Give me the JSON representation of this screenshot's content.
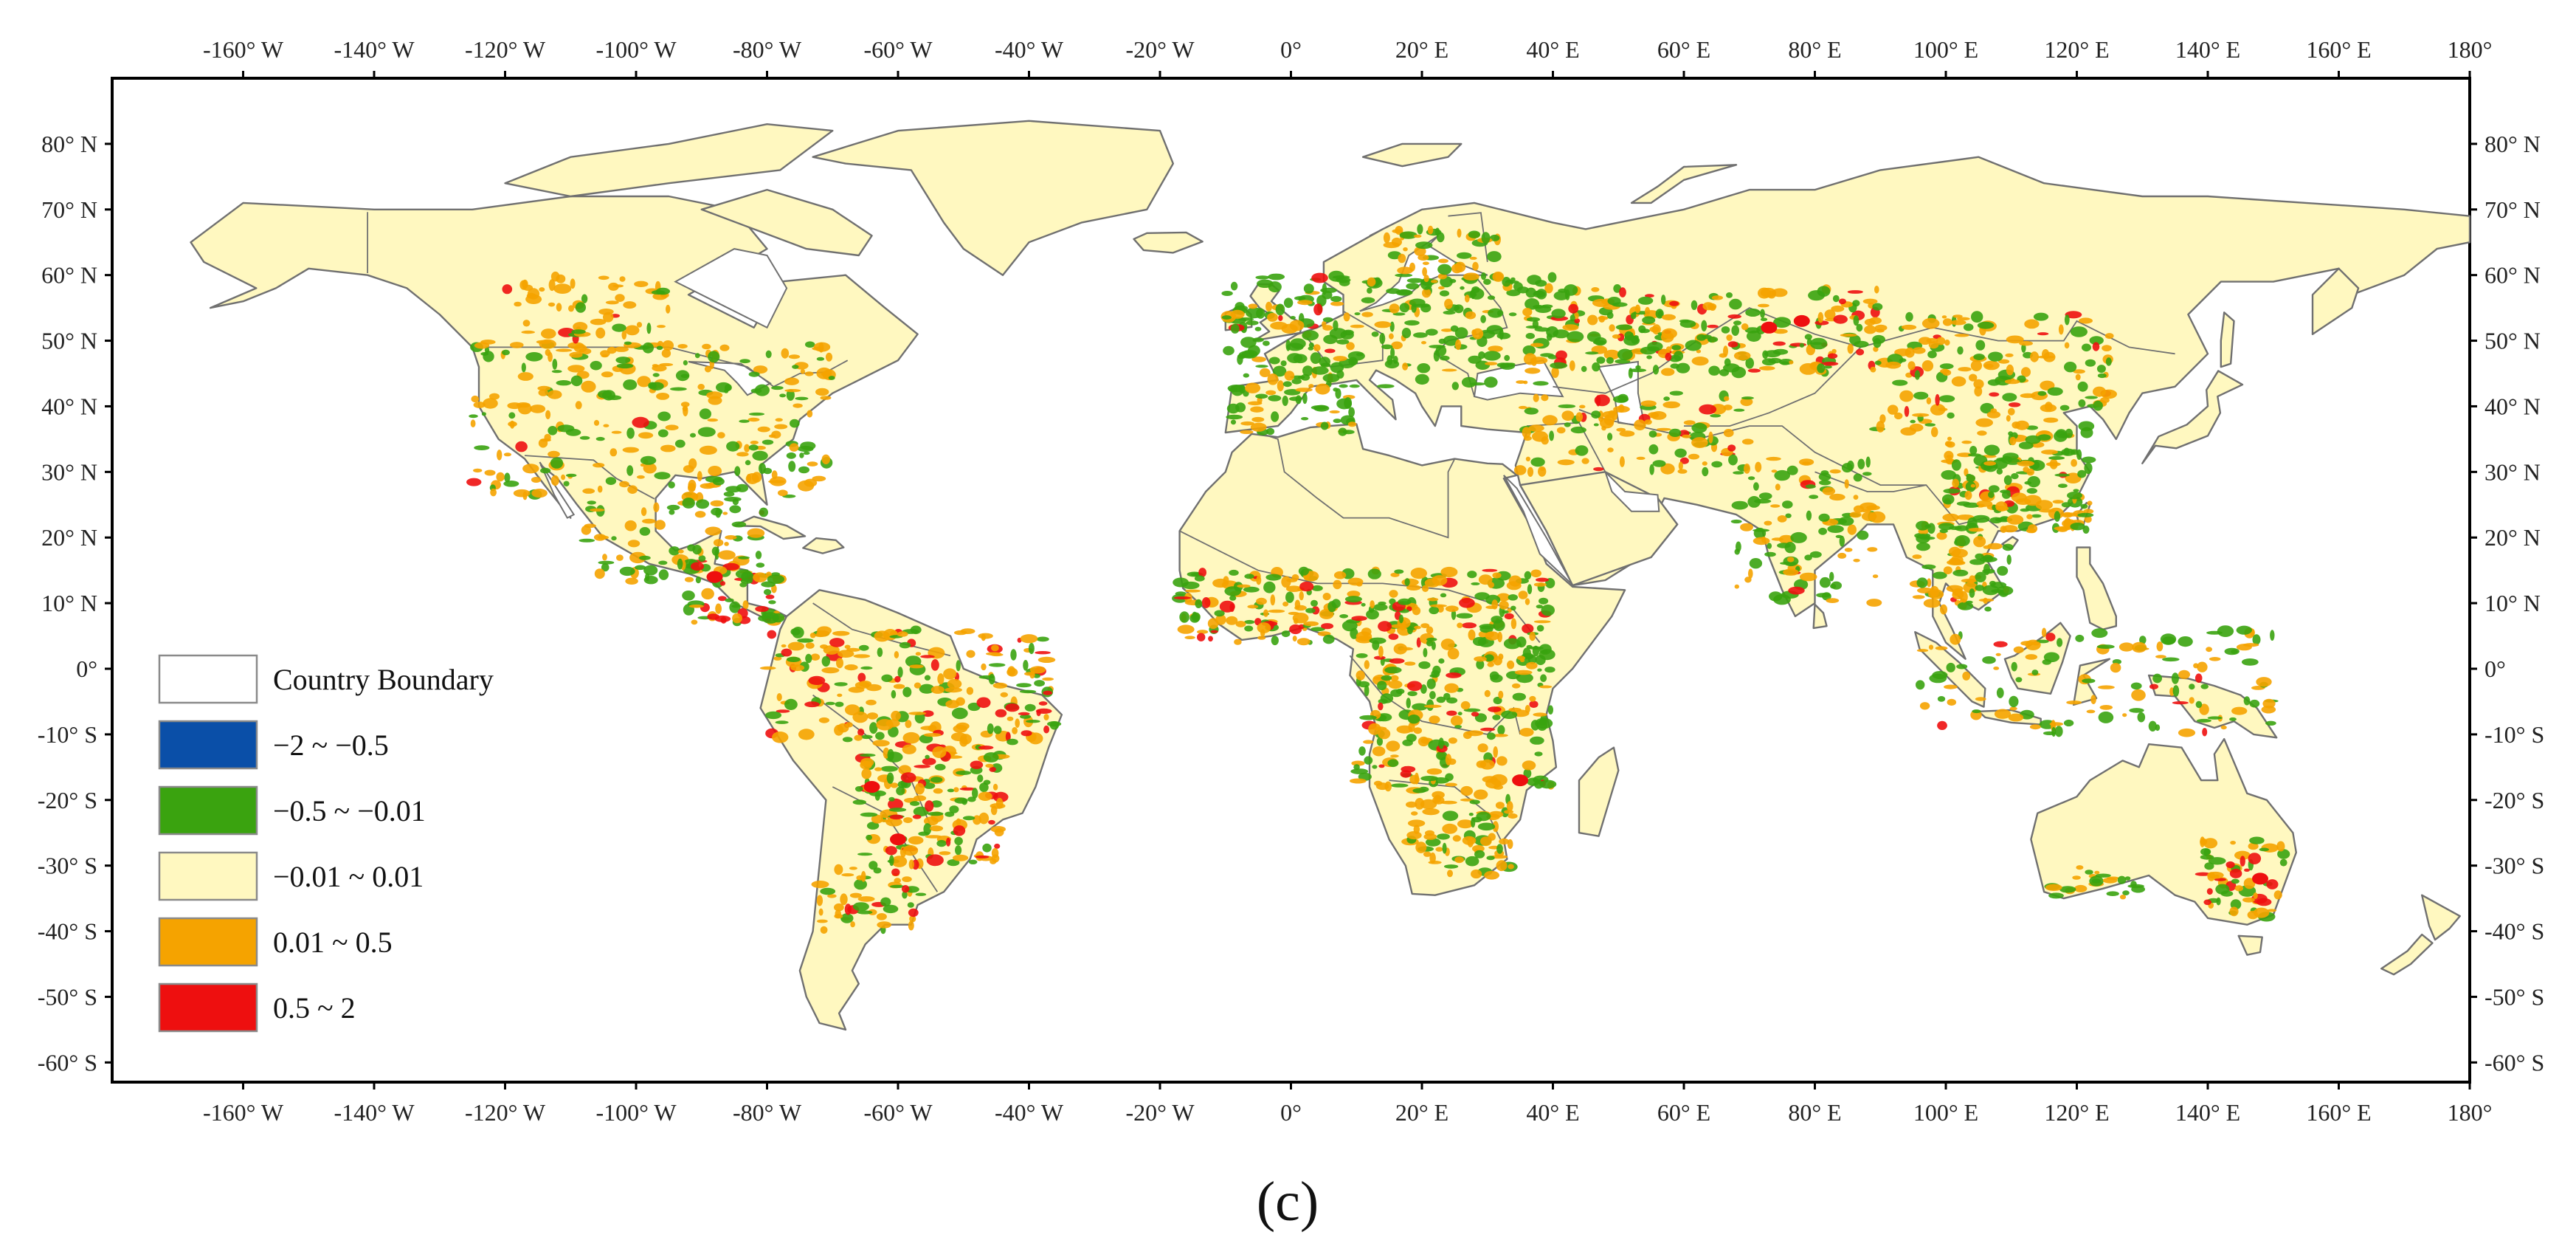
{
  "map": {
    "panel_label": "(c)",
    "extent": {
      "lon": [
        -180,
        180
      ],
      "lat": [
        -63,
        90
      ]
    },
    "background_color": "#ffffff",
    "land_color": "#fff8c0",
    "boundary_color": "#707070",
    "x_ticks": [
      {
        "lon": -160,
        "label": "-160° W"
      },
      {
        "lon": -140,
        "label": "-140° W"
      },
      {
        "lon": -120,
        "label": "-120° W"
      },
      {
        "lon": -100,
        "label": "-100° W"
      },
      {
        "lon": -80,
        "label": "-80° W"
      },
      {
        "lon": -60,
        "label": "-60° W"
      },
      {
        "lon": -40,
        "label": "-40° W"
      },
      {
        "lon": -20,
        "label": "-20° W"
      },
      {
        "lon": 0,
        "label": "0°"
      },
      {
        "lon": 20,
        "label": "20° E"
      },
      {
        "lon": 40,
        "label": "40° E"
      },
      {
        "lon": 60,
        "label": "60° E"
      },
      {
        "lon": 80,
        "label": "80° E"
      },
      {
        "lon": 100,
        "label": "100° E"
      },
      {
        "lon": 120,
        "label": "120° E"
      },
      {
        "lon": 140,
        "label": "140° E"
      },
      {
        "lon": 160,
        "label": "160° E"
      },
      {
        "lon": 180,
        "label": "180°"
      }
    ],
    "y_ticks": [
      {
        "lat": 80,
        "label": "80° N"
      },
      {
        "lat": 70,
        "label": "70° N"
      },
      {
        "lat": 60,
        "label": "60° N"
      },
      {
        "lat": 50,
        "label": "50° N"
      },
      {
        "lat": 40,
        "label": "40° N"
      },
      {
        "lat": 30,
        "label": "30° N"
      },
      {
        "lat": 20,
        "label": "20° N"
      },
      {
        "lat": 10,
        "label": "10° N"
      },
      {
        "lat": 0,
        "label": "0°"
      },
      {
        "lat": -10,
        "label": "-10° S"
      },
      {
        "lat": -20,
        "label": "-20° S"
      },
      {
        "lat": -30,
        "label": "-30° S"
      },
      {
        "lat": -40,
        "label": "-40° S"
      },
      {
        "lat": -50,
        "label": "-50° S"
      },
      {
        "lat": -60,
        "label": "-60° S"
      }
    ],
    "legend": [
      {
        "label": "Country Boundary",
        "color": "#ffffff"
      },
      {
        "label": "−2 ~ −0.5",
        "color": "#0a4fa8"
      },
      {
        "label": "−0.5 ~ −0.01",
        "color": "#3aa30f"
      },
      {
        "label": "−0.01 ~ 0.01",
        "color": "#fff8c0"
      },
      {
        "label": "0.01 ~ 0.5",
        "color": "#f5a300"
      },
      {
        "label": "0.5 ~ 2",
        "color": "#ee0f0f"
      }
    ]
  }
}
